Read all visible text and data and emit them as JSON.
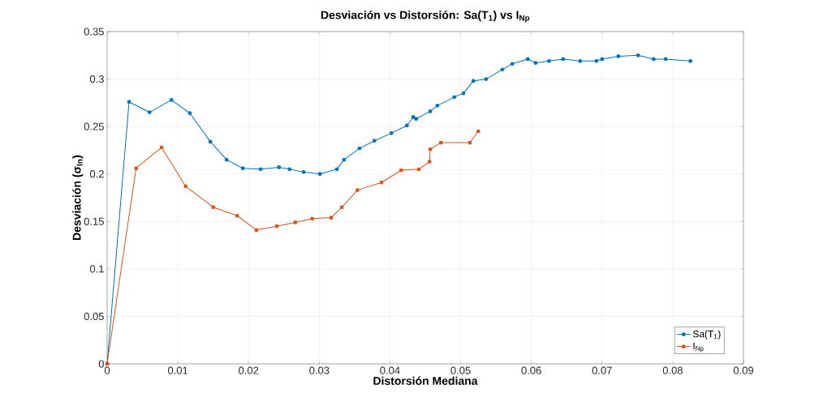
{
  "chart_data": {
    "type": "line",
    "title": "Desviación vs Distorsión: Sa(T$_{1}$) vs I$_{Np}$",
    "xlabel": "Distorsión Mediana",
    "ylabel": "Desviación (σ$_{ln}$)",
    "xlim": [
      0,
      0.09
    ],
    "ylim": [
      0,
      0.35
    ],
    "xticks": [
      0,
      0.01,
      0.02,
      0.03,
      0.04,
      0.05,
      0.06,
      0.07,
      0.08,
      0.09
    ],
    "yticks": [
      0,
      0.05,
      0.1,
      0.15,
      0.2,
      0.25,
      0.3,
      0.35
    ],
    "grid": true,
    "legend": "bottom right",
    "line_style": "solid",
    "series": [
      {
        "name": "Sa(T$_{1}$)",
        "color": "#0072bd",
        "marker": "circle",
        "x": [
          0,
          0.0031,
          0.006,
          0.0091,
          0.0117,
          0.0146,
          0.0169,
          0.0192,
          0.0217,
          0.0243,
          0.0258,
          0.0278,
          0.0301,
          0.0325,
          0.0335,
          0.0357,
          0.0378,
          0.0402,
          0.0424,
          0.0433,
          0.0437,
          0.0457,
          0.0467,
          0.0491,
          0.0504,
          0.0518,
          0.0536,
          0.0559,
          0.0573,
          0.0595,
          0.0606,
          0.0625,
          0.0645,
          0.0669,
          0.0692,
          0.07,
          0.0723,
          0.0751,
          0.0773,
          0.079,
          0.0825
        ],
        "values": [
          0,
          0.276,
          0.265,
          0.278,
          0.264,
          0.234,
          0.215,
          0.206,
          0.205,
          0.207,
          0.205,
          0.202,
          0.2,
          0.205,
          0.215,
          0.227,
          0.235,
          0.243,
          0.251,
          0.26,
          0.258,
          0.266,
          0.272,
          0.281,
          0.285,
          0.298,
          0.3,
          0.31,
          0.316,
          0.321,
          0.317,
          0.319,
          0.321,
          0.319,
          0.319,
          0.321,
          0.324,
          0.325,
          0.321,
          0.321,
          0.319
        ]
      },
      {
        "name": "I$_{Np}$",
        "color": "#d95319",
        "marker": "square",
        "x": [
          0,
          0.0041,
          0.0077,
          0.0111,
          0.015,
          0.0184,
          0.0211,
          0.024,
          0.0266,
          0.029,
          0.0317,
          0.0332,
          0.0354,
          0.0388,
          0.0416,
          0.0441,
          0.0456,
          0.0457,
          0.0472,
          0.0513,
          0.0525
        ],
        "values": [
          0,
          0.206,
          0.228,
          0.187,
          0.165,
          0.156,
          0.141,
          0.145,
          0.149,
          0.153,
          0.154,
          0.165,
          0.183,
          0.191,
          0.204,
          0.205,
          0.213,
          0.226,
          0.233,
          0.233,
          0.245
        ]
      }
    ]
  }
}
